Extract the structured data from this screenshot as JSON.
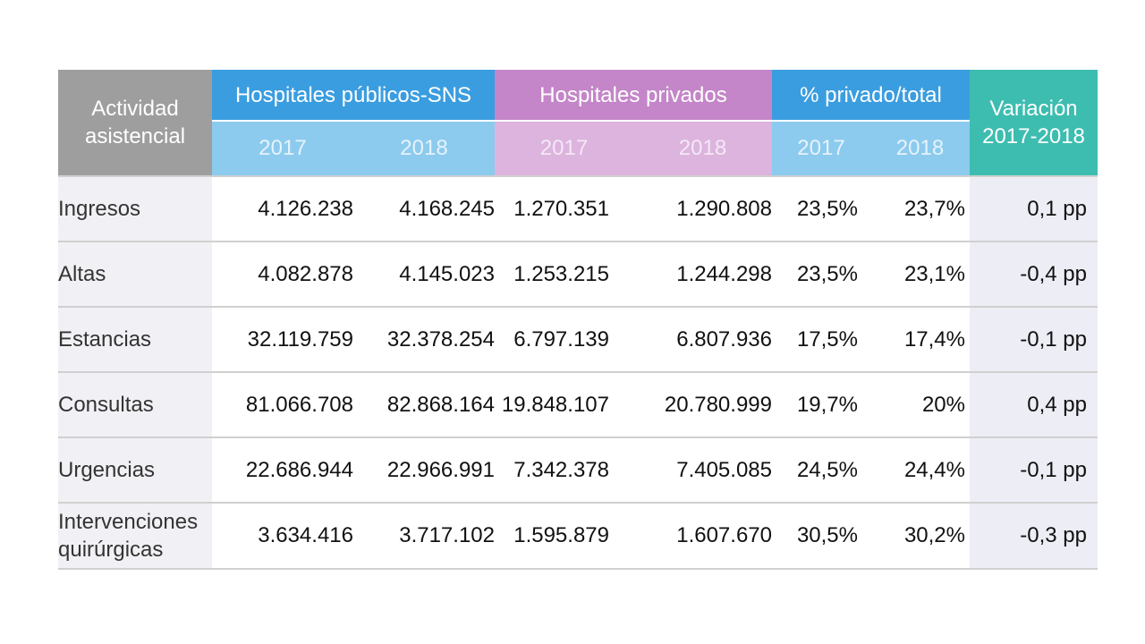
{
  "header": {
    "actividad": [
      "Actividad",
      "asistencial"
    ],
    "publicos": "Hospitales públicos-SNS",
    "privados": "Hospitales privados",
    "porcentaje": "% privado/total",
    "variacion": [
      "Variación",
      "2017-2018"
    ],
    "year_2017": "2017",
    "year_2018": "2018"
  },
  "rows": [
    {
      "label": "Ingresos",
      "pub_2017": "4.126.238",
      "pub_2018": "4.168.245",
      "priv_2017": "1.270.351",
      "priv_2018": "1.290.808",
      "pct_2017": "23,5%",
      "pct_2018": "23,7%",
      "var": "0,1 pp"
    },
    {
      "label": "Altas",
      "pub_2017": "4.082.878",
      "pub_2018": "4.145.023",
      "priv_2017": "1.253.215",
      "priv_2018": "1.244.298",
      "pct_2017": "23,5%",
      "pct_2018": "23,1%",
      "var": "-0,4 pp"
    },
    {
      "label": "Estancias",
      "pub_2017": "32.119.759",
      "pub_2018": "32.378.254",
      "priv_2017": "6.797.139",
      "priv_2018": "6.807.936",
      "pct_2017": "17,5%",
      "pct_2018": "17,4%",
      "var": "-0,1 pp"
    },
    {
      "label": "Consultas",
      "pub_2017": "81.066.708",
      "pub_2018": "82.868.164",
      "priv_2017": "19.848.107",
      "priv_2018": "20.780.999",
      "pct_2017": "19,7%",
      "pct_2018": "20%",
      "var": "0,4 pp"
    },
    {
      "label": "Urgencias",
      "pub_2017": "22.686.944",
      "pub_2018": "22.966.991",
      "priv_2017": "7.342.378",
      "priv_2018": "7.405.085",
      "pct_2017": "24,5%",
      "pct_2018": "24,4%",
      "var": "-0,1 pp"
    },
    {
      "label": [
        "Intervenciones",
        "quirúrgicas"
      ],
      "pub_2017": "3.634.416",
      "pub_2018": "3.717.102",
      "priv_2017": "1.595.879",
      "priv_2018": "1.607.670",
      "pct_2017": "30,5%",
      "pct_2018": "30,2%",
      "var": "-0,3 pp"
    }
  ],
  "colors": {
    "gray_header": "#9e9e9e",
    "blue_header": "#3a9de0",
    "blue_sub": "#8ccbee",
    "purple_header": "#c486c8",
    "purple_sub": "#dcb4de",
    "teal_header": "#3dbdb0",
    "label_bg": "#f1f1f5"
  }
}
